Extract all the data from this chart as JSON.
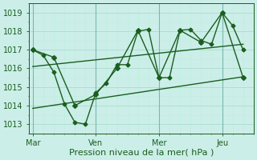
{
  "background_color": "#cceee8",
  "grid_major_color": "#aaddcc",
  "grid_minor_color": "#bbeedc",
  "line_color": "#1a5e20",
  "text_color": "#1a5e20",
  "xlabel": "Pression niveau de la mer( hPa )",
  "yticks": [
    1013,
    1014,
    1015,
    1016,
    1017,
    1018,
    1019
  ],
  "ylim": [
    1012.5,
    1019.5
  ],
  "xtick_labels": [
    "Mar",
    "Ven",
    "Mer",
    "Jeu"
  ],
  "xtick_positions": [
    0,
    36,
    72,
    108
  ],
  "xlim": [
    -2,
    126
  ],
  "series1_x": [
    0,
    6,
    12,
    18,
    24,
    30,
    36,
    42,
    48,
    54,
    60,
    66,
    72,
    78,
    84,
    90,
    96,
    102,
    108,
    114,
    120
  ],
  "series1_y": [
    1017.0,
    1016.7,
    1015.8,
    1014.1,
    1013.1,
    1013.0,
    1014.7,
    1015.2,
    1016.2,
    1016.2,
    1018.0,
    1018.1,
    1015.5,
    1015.5,
    1018.05,
    1018.1,
    1017.5,
    1017.3,
    1019.0,
    1018.3,
    1017.0
  ],
  "series2_x": [
    0,
    12,
    24,
    36,
    48,
    60,
    72,
    84,
    96,
    108,
    120
  ],
  "series2_y": [
    1017.0,
    1016.6,
    1014.0,
    1014.6,
    1016.0,
    1018.05,
    1015.5,
    1018.05,
    1017.4,
    1019.0,
    1015.5
  ],
  "trendline_x": [
    0,
    120
  ],
  "trendline1_y": [
    1016.1,
    1017.3
  ],
  "trendline2_y": [
    1013.85,
    1015.55
  ],
  "vline_positions": [
    0,
    36,
    72,
    108
  ],
  "marker_size": 3,
  "line_width": 1.0,
  "tick_label_fontsize": 7,
  "xlabel_fontsize": 8
}
